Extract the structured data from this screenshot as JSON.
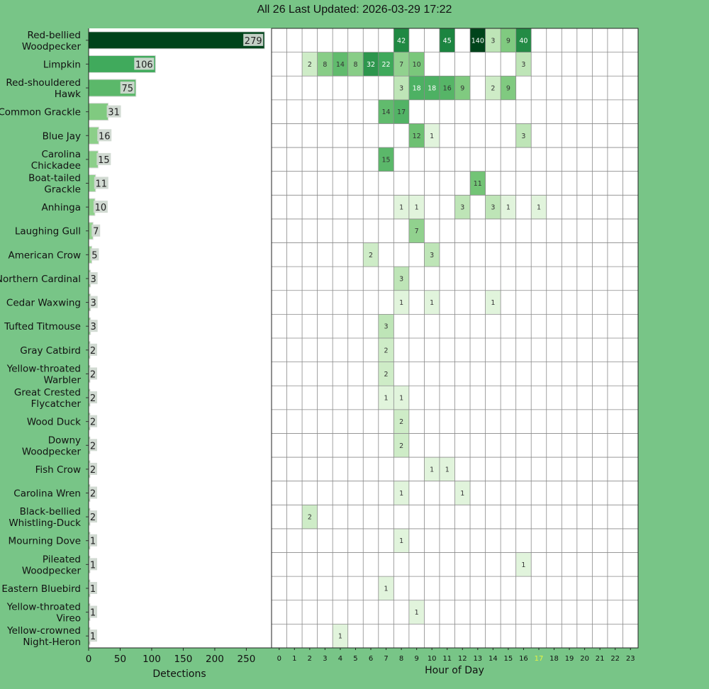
{
  "header": {
    "title": "All 26 Last Updated: 2026-03-29 17:22"
  },
  "colors": {
    "background": "#78c587",
    "current_hour_tick": "#e8f540",
    "heat_scale_light": "#f7fcf5",
    "heat_scale_dark": "#00441b",
    "bar_label_box": "#cfd8d0"
  },
  "chart_data": [
    {
      "type": "bar",
      "orientation": "horizontal",
      "categories": [
        "Red-bellied Woodpecker",
        "Limpkin",
        "Red-shouldered Hawk",
        "Common Grackle",
        "Blue Jay",
        "Carolina Chickadee",
        "Boat-tailed Grackle",
        "Anhinga",
        "Laughing Gull",
        "American Crow",
        "Northern Cardinal",
        "Cedar Waxwing",
        "Tufted Titmouse",
        "Gray Catbird",
        "Yellow-throated Warbler",
        "Great Crested Flycatcher",
        "Wood Duck",
        "Downy Woodpecker",
        "Fish Crow",
        "Carolina Wren",
        "Black-bellied Whistling-Duck",
        "Mourning Dove",
        "Pileated Woodpecker",
        "Eastern Bluebird",
        "Yellow-throated Vireo",
        "Yellow-crowned Night-Heron"
      ],
      "category_lines": [
        [
          "Red-bellied",
          "Woodpecker"
        ],
        [
          "Limpkin"
        ],
        [
          "Red-shouldered",
          "Hawk"
        ],
        [
          "Common Grackle"
        ],
        [
          "Blue Jay"
        ],
        [
          "Carolina",
          "Chickadee"
        ],
        [
          "Boat-tailed",
          "Grackle"
        ],
        [
          "Anhinga"
        ],
        [
          "Laughing Gull"
        ],
        [
          "American Crow"
        ],
        [
          "Northern Cardinal"
        ],
        [
          "Cedar Waxwing"
        ],
        [
          "Tufted Titmouse"
        ],
        [
          "Gray Catbird"
        ],
        [
          "Yellow-throated",
          "Warbler"
        ],
        [
          "Great Crested",
          "Flycatcher"
        ],
        [
          "Wood Duck"
        ],
        [
          "Downy",
          "Woodpecker"
        ],
        [
          "Fish Crow"
        ],
        [
          "Carolina Wren"
        ],
        [
          "Black-bellied",
          "Whistling-Duck"
        ],
        [
          "Mourning Dove"
        ],
        [
          "Pileated",
          "Woodpecker"
        ],
        [
          "Eastern Bluebird"
        ],
        [
          "Yellow-throated",
          "Vireo"
        ],
        [
          "Yellow-crowned",
          "Night-Heron"
        ]
      ],
      "values": [
        279,
        106,
        75,
        31,
        16,
        15,
        11,
        10,
        7,
        5,
        3,
        3,
        3,
        2,
        2,
        2,
        2,
        2,
        2,
        2,
        2,
        1,
        1,
        1,
        1,
        1
      ],
      "xlabel": "Detections",
      "xlim": [
        0,
        290
      ],
      "xticks": [
        0,
        50,
        100,
        150,
        200,
        250
      ]
    },
    {
      "type": "heatmap",
      "xlabel": "Hour of Day",
      "x": [
        0,
        1,
        2,
        3,
        4,
        5,
        6,
        7,
        8,
        9,
        10,
        11,
        12,
        13,
        14,
        15,
        16,
        17,
        18,
        19,
        20,
        21,
        22,
        23
      ],
      "highlight_hour": 17,
      "max_value": 140,
      "cells": [
        [
          [
            8,
            42
          ],
          [
            11,
            45
          ],
          [
            13,
            140
          ],
          [
            14,
            3
          ],
          [
            15,
            9
          ],
          [
            16,
            40
          ]
        ],
        [
          [
            2,
            2
          ],
          [
            3,
            8
          ],
          [
            4,
            14
          ],
          [
            5,
            8
          ],
          [
            6,
            32
          ],
          [
            7,
            22
          ],
          [
            8,
            7
          ],
          [
            9,
            10
          ],
          [
            16,
            3
          ]
        ],
        [
          [
            8,
            3
          ],
          [
            9,
            18
          ],
          [
            10,
            18
          ],
          [
            11,
            16
          ],
          [
            12,
            9
          ],
          [
            14,
            2
          ],
          [
            15,
            9
          ]
        ],
        [
          [
            7,
            14
          ],
          [
            8,
            17
          ]
        ],
        [
          [
            9,
            12
          ],
          [
            10,
            1
          ],
          [
            16,
            3
          ]
        ],
        [
          [
            7,
            15
          ]
        ],
        [
          [
            13,
            11
          ]
        ],
        [
          [
            8,
            1
          ],
          [
            9,
            1
          ],
          [
            12,
            3
          ],
          [
            14,
            3
          ],
          [
            15,
            1
          ],
          [
            17,
            1
          ]
        ],
        [
          [
            9,
            7
          ]
        ],
        [
          [
            6,
            2
          ],
          [
            10,
            3
          ]
        ],
        [
          [
            8,
            3
          ]
        ],
        [
          [
            8,
            1
          ],
          [
            10,
            1
          ],
          [
            14,
            1
          ]
        ],
        [
          [
            7,
            3
          ]
        ],
        [
          [
            7,
            2
          ]
        ],
        [
          [
            7,
            2
          ]
        ],
        [
          [
            7,
            1
          ],
          [
            8,
            1
          ]
        ],
        [
          [
            8,
            2
          ]
        ],
        [
          [
            8,
            2
          ]
        ],
        [
          [
            10,
            1
          ],
          [
            11,
            1
          ]
        ],
        [
          [
            8,
            1
          ],
          [
            12,
            1
          ]
        ],
        [
          [
            2,
            2
          ]
        ],
        [
          [
            8,
            1
          ]
        ],
        [
          [
            16,
            1
          ]
        ],
        [
          [
            7,
            1
          ]
        ],
        [
          [
            9,
            1
          ]
        ],
        [
          [
            4,
            1
          ]
        ]
      ]
    }
  ]
}
